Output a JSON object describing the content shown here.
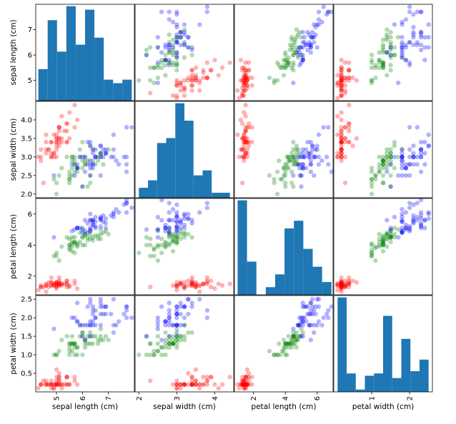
{
  "chart_data": {
    "type": "scatter-matrix",
    "variables": [
      "sepal length (cm)",
      "sepal width (cm)",
      "petal length (cm)",
      "petal width (cm)"
    ],
    "ranges": [
      [
        4.2,
        8.0
      ],
      [
        1.9,
        4.5
      ],
      [
        0.8,
        7.0
      ],
      [
        0.0,
        2.6
      ]
    ],
    "ticks": [
      [
        5,
        6,
        7
      ],
      [
        2.0,
        2.5,
        3.0,
        3.5,
        4.0
      ],
      [
        2,
        4,
        6
      ],
      [
        0.5,
        1.0,
        1.5,
        2.0,
        2.5
      ]
    ],
    "tick_labels": [
      [
        "5",
        "6",
        "7"
      ],
      [
        "2.0",
        "2.5",
        "3.0",
        "3.5",
        "4.0"
      ],
      [
        "2",
        "4",
        "6"
      ],
      [
        "0.5",
        "1.0",
        "1.5",
        "2.0",
        "2.5"
      ]
    ],
    "bottom_tick_labels": [
      [
        "5",
        "6",
        "7"
      ],
      [
        "2",
        "3",
        "4"
      ],
      [
        "2",
        "4",
        "6"
      ],
      [
        "1",
        "2"
      ]
    ],
    "bottom_ticks": [
      [
        5,
        6,
        7
      ],
      [
        2,
        3,
        4
      ],
      [
        2,
        4,
        6
      ],
      [
        1,
        2
      ]
    ],
    "histograms": [
      {
        "bins": [
          4.3,
          4.66,
          5.02,
          5.38,
          5.74,
          6.1,
          6.46,
          6.82,
          7.18,
          7.54,
          7.9
        ],
        "counts": [
          9,
          23,
          14,
          27,
          16,
          26,
          18,
          6,
          5,
          6
        ]
      },
      {
        "bins": [
          2.0,
          2.24,
          2.48,
          2.72,
          2.96,
          3.2,
          3.44,
          3.68,
          3.92,
          4.16,
          4.4
        ],
        "counts": [
          4,
          7,
          22,
          24,
          38,
          31,
          9,
          11,
          2,
          2
        ]
      },
      {
        "bins": [
          1.0,
          1.59,
          2.18,
          2.77,
          3.36,
          3.95,
          4.54,
          5.13,
          5.72,
          6.31,
          6.9
        ],
        "counts": [
          37,
          13,
          0,
          3,
          8,
          26,
          29,
          18,
          11,
          5
        ]
      },
      {
        "bins": [
          0.1,
          0.34,
          0.58,
          0.82,
          1.06,
          1.3,
          1.54,
          1.78,
          2.02,
          2.26,
          2.5
        ],
        "counts": [
          41,
          8,
          1,
          7,
          8,
          33,
          6,
          23,
          9,
          14
        ]
      }
    ],
    "series": [
      {
        "color": "#ff0000",
        "points": [
          [
            5.1,
            3.5,
            1.4,
            0.2
          ],
          [
            4.9,
            3.0,
            1.4,
            0.2
          ],
          [
            4.7,
            3.2,
            1.3,
            0.2
          ],
          [
            4.6,
            3.1,
            1.5,
            0.2
          ],
          [
            5.0,
            3.6,
            1.4,
            0.2
          ],
          [
            5.4,
            3.9,
            1.7,
            0.4
          ],
          [
            4.6,
            3.4,
            1.4,
            0.3
          ],
          [
            5.0,
            3.4,
            1.5,
            0.2
          ],
          [
            4.4,
            2.9,
            1.4,
            0.2
          ],
          [
            4.9,
            3.1,
            1.5,
            0.1
          ],
          [
            5.4,
            3.7,
            1.5,
            0.2
          ],
          [
            4.8,
            3.4,
            1.6,
            0.2
          ],
          [
            4.8,
            3.0,
            1.4,
            0.1
          ],
          [
            4.3,
            3.0,
            1.1,
            0.1
          ],
          [
            5.8,
            4.0,
            1.2,
            0.2
          ],
          [
            5.7,
            4.4,
            1.5,
            0.4
          ],
          [
            5.4,
            3.9,
            1.3,
            0.4
          ],
          [
            5.1,
            3.5,
            1.4,
            0.3
          ],
          [
            5.7,
            3.8,
            1.7,
            0.3
          ],
          [
            5.1,
            3.8,
            1.5,
            0.3
          ],
          [
            5.4,
            3.4,
            1.7,
            0.2
          ],
          [
            5.1,
            3.7,
            1.5,
            0.4
          ],
          [
            4.6,
            3.6,
            1.0,
            0.2
          ],
          [
            5.1,
            3.3,
            1.7,
            0.5
          ],
          [
            4.8,
            3.4,
            1.9,
            0.2
          ],
          [
            5.0,
            3.0,
            1.6,
            0.2
          ],
          [
            5.0,
            3.4,
            1.6,
            0.4
          ],
          [
            5.2,
            3.5,
            1.5,
            0.2
          ],
          [
            5.2,
            3.4,
            1.4,
            0.2
          ],
          [
            4.7,
            3.2,
            1.6,
            0.2
          ],
          [
            4.8,
            3.1,
            1.6,
            0.2
          ],
          [
            5.4,
            3.4,
            1.5,
            0.4
          ],
          [
            5.2,
            4.1,
            1.5,
            0.1
          ],
          [
            5.5,
            4.2,
            1.4,
            0.2
          ],
          [
            4.9,
            3.1,
            1.5,
            0.2
          ],
          [
            5.0,
            3.2,
            1.2,
            0.2
          ],
          [
            5.5,
            3.5,
            1.3,
            0.2
          ],
          [
            4.9,
            3.6,
            1.4,
            0.1
          ],
          [
            4.4,
            3.0,
            1.3,
            0.2
          ],
          [
            5.1,
            3.4,
            1.5,
            0.2
          ],
          [
            5.0,
            3.5,
            1.3,
            0.3
          ],
          [
            4.5,
            2.3,
            1.3,
            0.3
          ],
          [
            4.4,
            3.2,
            1.3,
            0.2
          ],
          [
            5.0,
            3.5,
            1.6,
            0.6
          ],
          [
            5.1,
            3.8,
            1.9,
            0.4
          ],
          [
            4.8,
            3.0,
            1.4,
            0.3
          ],
          [
            5.1,
            3.8,
            1.6,
            0.2
          ],
          [
            4.6,
            3.2,
            1.4,
            0.2
          ],
          [
            5.3,
            3.7,
            1.5,
            0.2
          ],
          [
            5.0,
            3.3,
            1.4,
            0.2
          ]
        ]
      },
      {
        "color": "#008000",
        "points": [
          [
            7.0,
            3.2,
            4.7,
            1.4
          ],
          [
            6.4,
            3.2,
            4.5,
            1.5
          ],
          [
            6.9,
            3.1,
            4.9,
            1.5
          ],
          [
            5.5,
            2.3,
            4.0,
            1.3
          ],
          [
            6.5,
            2.8,
            4.6,
            1.5
          ],
          [
            5.7,
            2.8,
            4.5,
            1.3
          ],
          [
            6.3,
            3.3,
            4.7,
            1.6
          ],
          [
            4.9,
            2.4,
            3.3,
            1.0
          ],
          [
            6.6,
            2.9,
            4.6,
            1.3
          ],
          [
            5.2,
            2.7,
            3.9,
            1.4
          ],
          [
            5.0,
            2.0,
            3.5,
            1.0
          ],
          [
            5.9,
            3.0,
            4.2,
            1.5
          ],
          [
            6.0,
            2.2,
            4.0,
            1.0
          ],
          [
            6.1,
            2.9,
            4.7,
            1.4
          ],
          [
            5.6,
            2.9,
            3.6,
            1.3
          ],
          [
            6.7,
            3.1,
            4.4,
            1.4
          ],
          [
            5.6,
            3.0,
            4.5,
            1.5
          ],
          [
            5.8,
            2.7,
            4.1,
            1.0
          ],
          [
            6.2,
            2.2,
            4.5,
            1.5
          ],
          [
            5.6,
            2.5,
            3.9,
            1.1
          ],
          [
            5.9,
            3.2,
            4.8,
            1.8
          ],
          [
            6.1,
            2.8,
            4.0,
            1.3
          ],
          [
            6.3,
            2.5,
            4.9,
            1.5
          ],
          [
            6.1,
            2.8,
            4.7,
            1.2
          ],
          [
            6.4,
            2.9,
            4.3,
            1.3
          ],
          [
            6.6,
            3.0,
            4.4,
            1.4
          ],
          [
            6.8,
            2.8,
            4.8,
            1.4
          ],
          [
            6.7,
            3.0,
            5.0,
            1.7
          ],
          [
            6.0,
            2.9,
            4.5,
            1.5
          ],
          [
            5.7,
            2.6,
            3.5,
            1.0
          ],
          [
            5.5,
            2.4,
            3.8,
            1.1
          ],
          [
            5.5,
            2.4,
            3.7,
            1.0
          ],
          [
            5.8,
            2.7,
            3.9,
            1.2
          ],
          [
            6.0,
            2.7,
            5.1,
            1.6
          ],
          [
            5.4,
            3.0,
            4.5,
            1.5
          ],
          [
            6.0,
            3.4,
            4.5,
            1.6
          ],
          [
            6.7,
            3.1,
            4.7,
            1.5
          ],
          [
            6.3,
            2.3,
            4.4,
            1.3
          ],
          [
            5.6,
            3.0,
            4.1,
            1.3
          ],
          [
            5.5,
            2.5,
            4.0,
            1.3
          ],
          [
            5.5,
            2.6,
            4.4,
            1.2
          ],
          [
            6.1,
            3.0,
            4.6,
            1.4
          ],
          [
            5.8,
            2.6,
            4.0,
            1.2
          ],
          [
            5.0,
            2.3,
            3.3,
            1.0
          ],
          [
            5.6,
            2.7,
            4.2,
            1.3
          ],
          [
            5.7,
            3.0,
            4.2,
            1.2
          ],
          [
            5.7,
            2.9,
            4.2,
            1.3
          ],
          [
            6.2,
            2.9,
            4.3,
            1.3
          ],
          [
            5.1,
            2.5,
            3.0,
            1.1
          ],
          [
            5.7,
            2.8,
            4.1,
            1.3
          ]
        ]
      },
      {
        "color": "#0000ff",
        "points": [
          [
            6.3,
            3.3,
            6.0,
            2.5
          ],
          [
            5.8,
            2.7,
            5.1,
            1.9
          ],
          [
            7.1,
            3.0,
            5.9,
            2.1
          ],
          [
            6.3,
            2.9,
            5.6,
            1.8
          ],
          [
            6.5,
            3.0,
            5.8,
            2.2
          ],
          [
            7.6,
            3.0,
            6.6,
            2.1
          ],
          [
            4.9,
            2.5,
            4.5,
            1.7
          ],
          [
            7.3,
            2.9,
            6.3,
            1.8
          ],
          [
            6.7,
            2.5,
            5.8,
            1.8
          ],
          [
            7.2,
            3.6,
            6.1,
            2.5
          ],
          [
            6.5,
            3.2,
            5.1,
            2.0
          ],
          [
            6.4,
            2.7,
            5.3,
            1.9
          ],
          [
            6.8,
            3.0,
            5.5,
            2.1
          ],
          [
            5.7,
            2.5,
            5.0,
            2.0
          ],
          [
            5.8,
            2.8,
            5.1,
            2.4
          ],
          [
            6.4,
            3.2,
            5.3,
            2.3
          ],
          [
            6.5,
            3.0,
            5.5,
            1.8
          ],
          [
            7.7,
            3.8,
            6.7,
            2.2
          ],
          [
            7.7,
            2.6,
            6.9,
            2.3
          ],
          [
            6.0,
            2.2,
            5.0,
            1.5
          ],
          [
            6.9,
            3.2,
            5.7,
            2.3
          ],
          [
            5.6,
            2.8,
            4.9,
            2.0
          ],
          [
            7.7,
            2.8,
            6.7,
            2.0
          ],
          [
            6.3,
            2.7,
            4.9,
            1.8
          ],
          [
            6.7,
            3.3,
            5.7,
            2.1
          ],
          [
            7.2,
            3.2,
            6.0,
            1.8
          ],
          [
            6.2,
            2.8,
            4.8,
            1.8
          ],
          [
            6.1,
            3.0,
            4.9,
            1.8
          ],
          [
            6.4,
            2.8,
            5.6,
            2.1
          ],
          [
            7.2,
            3.0,
            5.8,
            1.6
          ],
          [
            7.4,
            2.8,
            6.1,
            1.9
          ],
          [
            7.9,
            3.8,
            6.4,
            2.0
          ],
          [
            6.4,
            2.8,
            5.6,
            2.2
          ],
          [
            6.3,
            2.8,
            5.1,
            1.5
          ],
          [
            6.1,
            2.6,
            5.6,
            1.4
          ],
          [
            7.7,
            3.0,
            6.1,
            2.3
          ],
          [
            6.3,
            3.4,
            5.6,
            2.4
          ],
          [
            6.4,
            3.1,
            5.5,
            1.8
          ],
          [
            6.0,
            3.0,
            4.8,
            1.8
          ],
          [
            6.9,
            3.1,
            5.4,
            2.1
          ],
          [
            6.7,
            3.1,
            5.6,
            2.4
          ],
          [
            6.9,
            3.1,
            5.1,
            2.3
          ],
          [
            5.8,
            2.7,
            5.1,
            1.9
          ],
          [
            6.8,
            3.2,
            5.9,
            2.3
          ],
          [
            6.7,
            3.3,
            5.7,
            2.5
          ],
          [
            6.7,
            3.0,
            5.2,
            2.3
          ],
          [
            6.3,
            2.5,
            5.0,
            1.9
          ],
          [
            6.5,
            3.0,
            5.2,
            2.0
          ],
          [
            6.2,
            3.4,
            5.4,
            2.3
          ],
          [
            5.9,
            3.0,
            5.1,
            1.8
          ]
        ]
      }
    ],
    "histogram_color": "#1f77b4",
    "point_alpha": 0.3,
    "grid": false
  }
}
